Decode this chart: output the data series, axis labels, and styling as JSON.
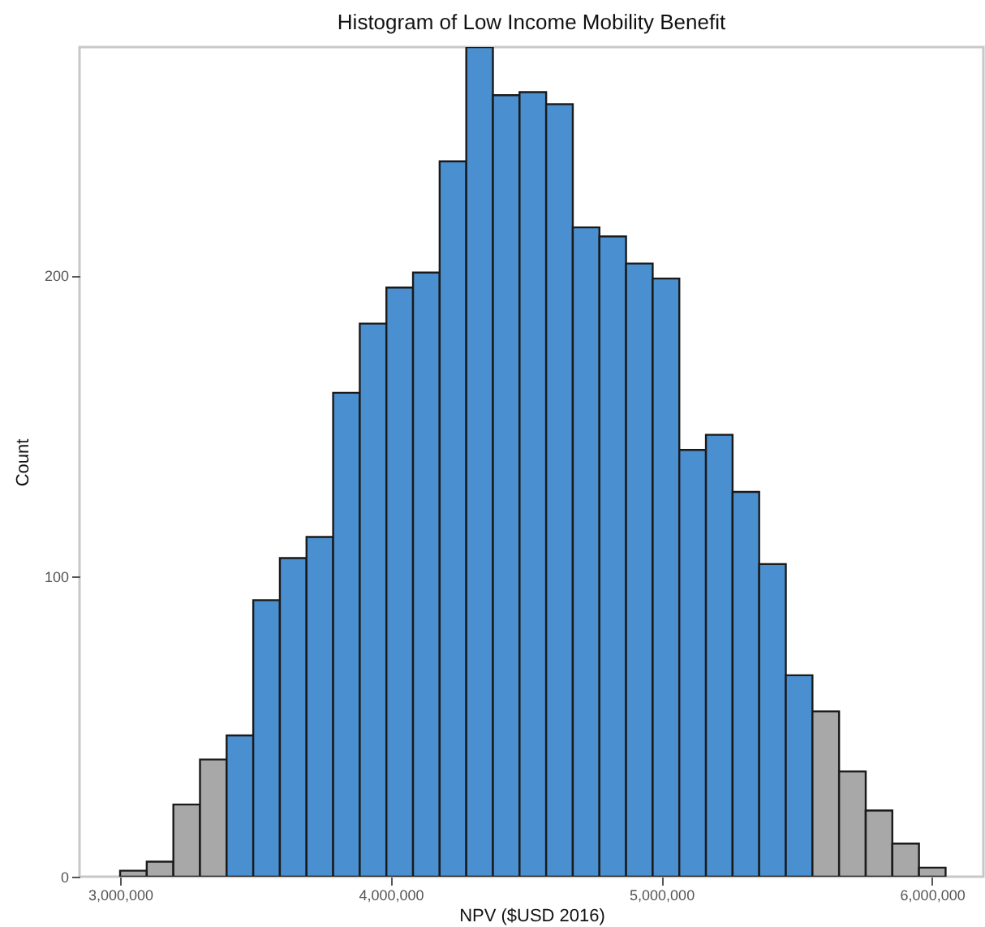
{
  "chart_data": {
    "type": "histogram",
    "title": "Histogram of Low Income Mobility Benefit",
    "xlabel": "NPV ($USD 2016)",
    "ylabel": "Count",
    "bins": [
      3000000,
      3098400,
      3196800,
      3295200,
      3393600,
      3492000,
      3590400,
      3688800,
      3787200,
      3885600,
      3984000,
      4082400,
      4180800,
      4279200,
      4377600,
      4476000,
      4574400,
      4672800,
      4771200,
      4869600,
      4968000,
      5066400,
      5164800,
      5263200,
      5361600,
      5460000,
      5558400,
      5656800,
      5755200,
      5853600,
      5952000,
      6050400
    ],
    "values": [
      2,
      5,
      24,
      39,
      47,
      92,
      106,
      113,
      161,
      184,
      196,
      201,
      238,
      276,
      260,
      261,
      257,
      216,
      213,
      204,
      199,
      142,
      147,
      128,
      104,
      67,
      55,
      35,
      22,
      11,
      3
    ],
    "colors": [
      "#a8a8a8",
      "#a8a8a8",
      "#a8a8a8",
      "#a8a8a8",
      "#4a8fcf",
      "#4a8fcf",
      "#4a8fcf",
      "#4a8fcf",
      "#4a8fcf",
      "#4a8fcf",
      "#4a8fcf",
      "#4a8fcf",
      "#4a8fcf",
      "#4a8fcf",
      "#4a8fcf",
      "#4a8fcf",
      "#4a8fcf",
      "#4a8fcf",
      "#4a8fcf",
      "#4a8fcf",
      "#4a8fcf",
      "#4a8fcf",
      "#4a8fcf",
      "#4a8fcf",
      "#4a8fcf",
      "#4a8fcf",
      "#a8a8a8",
      "#a8a8a8",
      "#a8a8a8",
      "#a8a8a8",
      "#a8a8a8"
    ],
    "xlim": [
      2850000,
      6190000
    ],
    "xticks": [
      {
        "value": 3000000,
        "label": "3,000,000"
      },
      {
        "value": 4000000,
        "label": "4,000,000"
      },
      {
        "value": 5000000,
        "label": "5,000,000"
      },
      {
        "value": 6000000,
        "label": "6,000,000"
      }
    ],
    "ylim": [
      0,
      276
    ],
    "yticks": [
      0,
      100,
      200
    ],
    "grid": false,
    "legend": false
  }
}
